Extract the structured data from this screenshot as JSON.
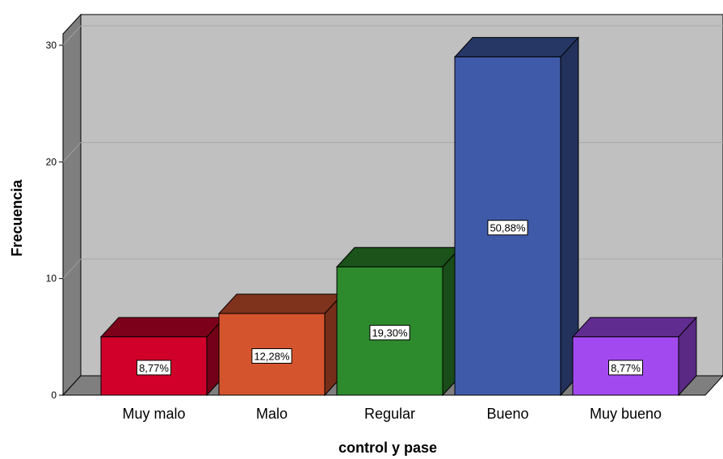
{
  "chart_data": {
    "type": "bar",
    "categories": [
      "Muy malo",
      "Malo",
      "Regular",
      "Bueno",
      "Muy bueno"
    ],
    "values": [
      5,
      7,
      11,
      29,
      5
    ],
    "data_labels": [
      "8,77%",
      "12,28%",
      "19,30%",
      "50,88%",
      "8,77%"
    ],
    "colors": [
      "#d1002b",
      "#d4542e",
      "#2d8a2d",
      "#3f5aa8",
      "#a24af0"
    ],
    "xlabel": "control y pase",
    "ylabel": "Frecuencia",
    "ylim": [
      0,
      30
    ],
    "yticks": [
      "0",
      "10",
      "20",
      "30"
    ],
    "grid": true,
    "style": "3d"
  }
}
